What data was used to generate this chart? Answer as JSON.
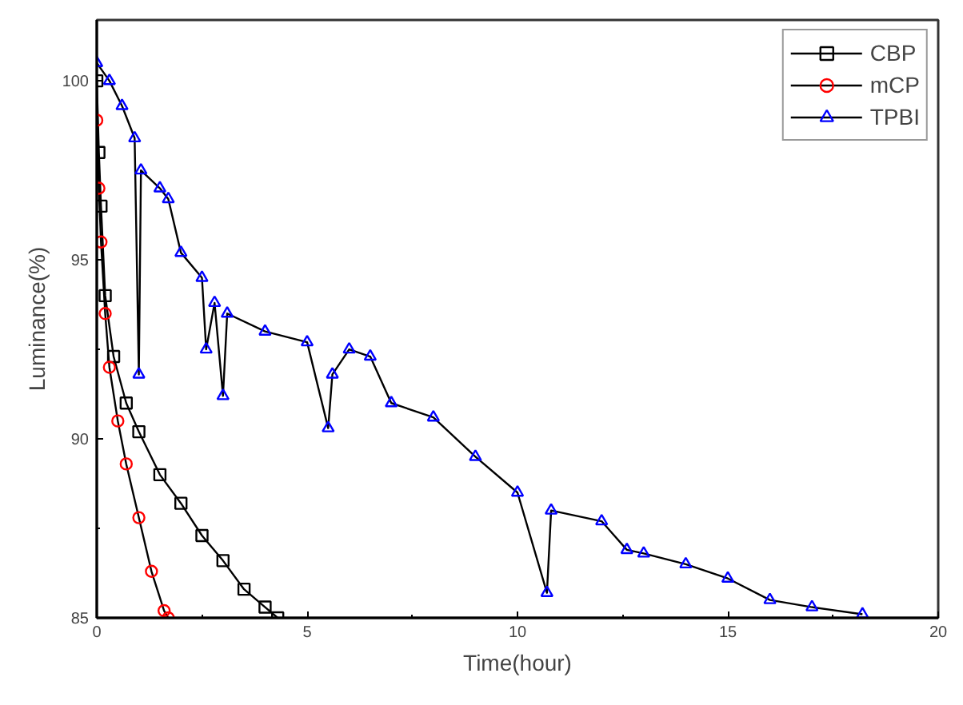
{
  "chart_data": {
    "type": "line",
    "xlabel": "Time(hour)",
    "ylabel": "Luminance(%)",
    "xlim": [
      0,
      20
    ],
    "ylim": [
      85,
      101.7
    ],
    "xticks": [
      0,
      5,
      10,
      15,
      20
    ],
    "yticks": [
      85,
      90,
      95,
      100
    ],
    "grid": false,
    "legend": "top right",
    "line_style": "solid",
    "series": [
      {
        "name": "CBP",
        "color": "#000000",
        "marker": "square",
        "x": [
          0,
          0.05,
          0.1,
          0.2,
          0.4,
          0.7,
          1.0,
          1.5,
          2.0,
          2.5,
          3.0,
          3.5,
          4.0,
          4.3
        ],
        "values": [
          100,
          98,
          96.5,
          94,
          92.3,
          91,
          90.2,
          89,
          88.2,
          87.3,
          86.6,
          85.8,
          85.3,
          85.0
        ]
      },
      {
        "name": "mCP",
        "color": "#ff0000",
        "marker": "circle",
        "x": [
          0,
          0.05,
          0.1,
          0.2,
          0.3,
          0.5,
          0.7,
          1.0,
          1.3,
          1.6,
          1.7
        ],
        "values": [
          98.9,
          97,
          95.5,
          93.5,
          92,
          90.5,
          89.3,
          87.8,
          86.3,
          85.2,
          85.0
        ]
      },
      {
        "name": "TPBI",
        "color": "#0000ff",
        "marker": "triangle",
        "x": [
          0,
          0.3,
          0.6,
          0.9,
          1.0,
          1.05,
          1.5,
          1.7,
          2.0,
          2.5,
          2.6,
          2.8,
          3.0,
          3.1,
          4,
          5,
          5.5,
          5.6,
          6,
          6.5,
          7,
          8,
          9,
          10,
          10.7,
          10.8,
          12,
          12.6,
          13,
          14,
          15,
          16,
          17,
          18.2
        ],
        "values": [
          100.5,
          100,
          99.3,
          98.4,
          91.8,
          97.5,
          97,
          96.7,
          95.2,
          94.5,
          92.5,
          93.8,
          91.2,
          93.5,
          93,
          92.7,
          90.3,
          91.8,
          92.5,
          92.3,
          91,
          90.6,
          89.5,
          88.5,
          85.7,
          88,
          87.7,
          86.9,
          86.8,
          86.5,
          86.1,
          85.5,
          85.3,
          85.1
        ]
      }
    ]
  }
}
